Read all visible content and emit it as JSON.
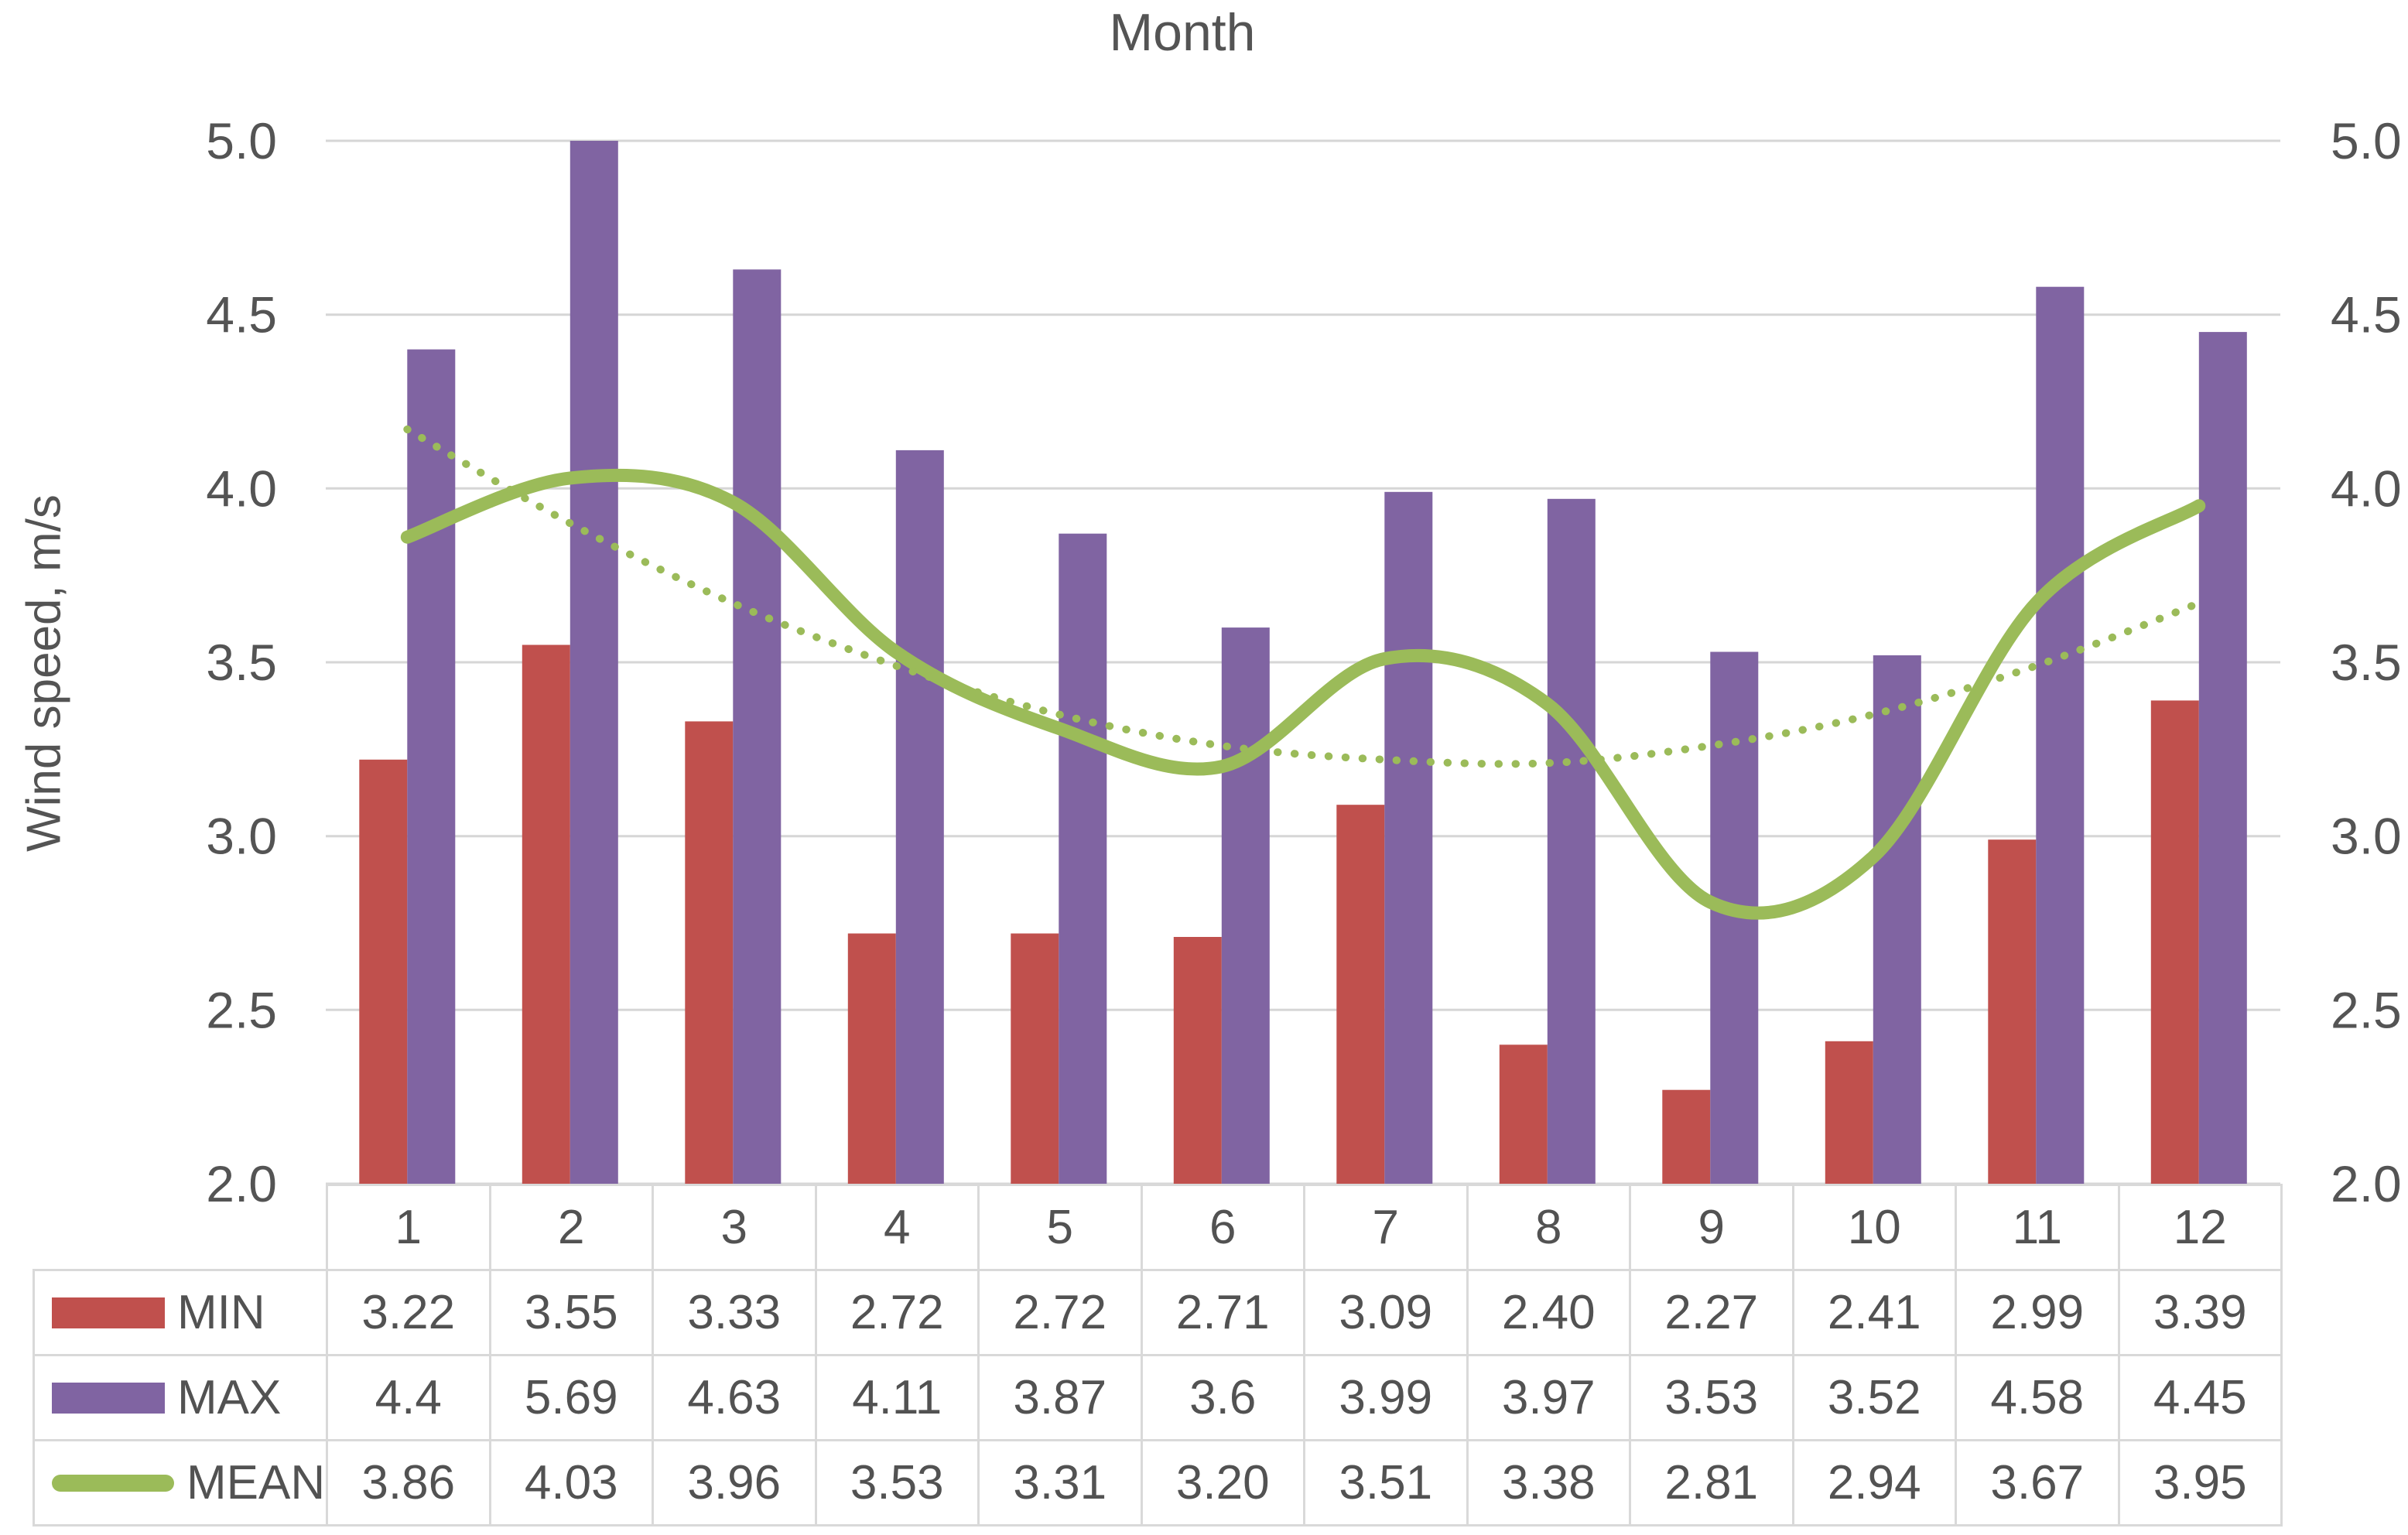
{
  "title": "Month",
  "y_axis_label": "Wind speed, m/s",
  "axis": {
    "ticks": [
      "5.0",
      "4.5",
      "4.0",
      "3.5",
      "3.0",
      "2.5",
      "2.0"
    ],
    "min": 2.0,
    "max": 5.0,
    "step": 0.5,
    "secondary_right_axis": true
  },
  "chart_data": {
    "type": "bar+line",
    "title": "Month",
    "xlabel": "Month",
    "ylabel": "Wind speed, m/s",
    "ylim": [
      2.0,
      5.0
    ],
    "y_tick_step": 0.5,
    "grid": true,
    "legend_position": "table-left",
    "categories": [
      "1",
      "2",
      "3",
      "4",
      "5",
      "6",
      "7",
      "8",
      "9",
      "10",
      "11",
      "12"
    ],
    "series": [
      {
        "name": "MIN",
        "type": "bar",
        "color": "#c0504d",
        "values": [
          3.22,
          3.55,
          3.33,
          2.72,
          2.72,
          2.71,
          3.09,
          2.4,
          2.27,
          2.41,
          2.99,
          3.39
        ],
        "display": [
          "3.22",
          "3.55",
          "3.33",
          "2.72",
          "2.72",
          "2.71",
          "3.09",
          "2.40",
          "2.27",
          "2.41",
          "2.99",
          "3.39"
        ]
      },
      {
        "name": "MAX",
        "type": "bar",
        "color": "#8064a2",
        "values": [
          4.4,
          5.69,
          4.63,
          4.11,
          3.87,
          3.6,
          3.99,
          3.97,
          3.53,
          3.52,
          4.58,
          4.45
        ],
        "display": [
          "4.4",
          "5.69",
          "4.63",
          "4.11",
          "3.87",
          "3.6",
          "3.99",
          "3.97",
          "3.53",
          "3.52",
          "4.58",
          "4.45"
        ]
      },
      {
        "name": "MEAN",
        "type": "line",
        "smooth": true,
        "color": "#9bbb59",
        "values": [
          3.86,
          4.03,
          3.96,
          3.53,
          3.31,
          3.2,
          3.51,
          3.38,
          2.81,
          2.94,
          3.67,
          3.95
        ],
        "display": [
          "3.86",
          "4.03",
          "3.96",
          "3.53",
          "3.31",
          "3.20",
          "3.51",
          "3.38",
          "2.81",
          "2.94",
          "3.67",
          "3.95"
        ]
      }
    ],
    "trendline": {
      "series": "MEAN",
      "kind": "polynomial-order-2",
      "style": "dotted",
      "color": "#9bbb59",
      "values": [
        4.17,
        3.9,
        3.67,
        3.49,
        3.35,
        3.26,
        3.22,
        3.21,
        3.26,
        3.35,
        3.49,
        3.67
      ]
    }
  },
  "colors": {
    "grid": "#d6d6d6",
    "table_border": "#d9d9d9",
    "text": "#525252",
    "background": "#ffffff"
  }
}
